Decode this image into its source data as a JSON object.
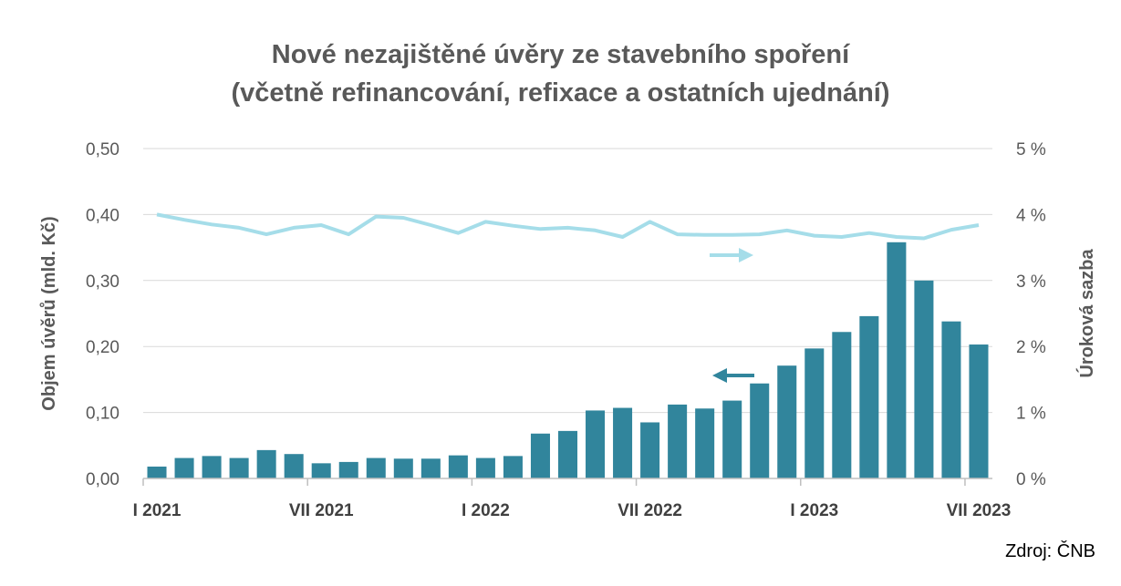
{
  "chart_data": {
    "type": "bar",
    "title": "Nové nezajištěné úvěry ze stavebního spoření",
    "subtitle": "(včetně refinancování, refixace a ostatních ujednání)",
    "ylabel": "Objem úvěrů (mld. Kč)",
    "y2label": "Úroková sazba",
    "ylim": [
      0,
      0.5
    ],
    "y2lim": [
      0,
      5
    ],
    "yticks": [
      "0,00",
      "0,10",
      "0,20",
      "0,30",
      "0,40",
      "0,50"
    ],
    "y2ticks": [
      "0 %",
      "1 %",
      "2 %",
      "3 %",
      "4 %",
      "5 %"
    ],
    "xtick_labels": [
      {
        "index": 0,
        "label": "I 2021"
      },
      {
        "index": 6,
        "label": "VII 2021"
      },
      {
        "index": 12,
        "label": "I 2022"
      },
      {
        "index": 18,
        "label": "VII 2022"
      },
      {
        "index": 24,
        "label": "I 2023"
      },
      {
        "index": 30,
        "label": "VII 2023"
      }
    ],
    "grid": true,
    "series": [
      {
        "type": "bar",
        "axis": "left",
        "color": "#31859c",
        "values": [
          0.018,
          0.031,
          0.034,
          0.031,
          0.043,
          0.037,
          0.023,
          0.025,
          0.031,
          0.03,
          0.03,
          0.035,
          0.031,
          0.034,
          0.068,
          0.072,
          0.103,
          0.107,
          0.085,
          0.112,
          0.106,
          0.118,
          0.144,
          0.171,
          0.197,
          0.222,
          0.246,
          0.358,
          0.3,
          0.238,
          0.203
        ]
      },
      {
        "type": "line",
        "axis": "right",
        "color": "#a5dde9",
        "values": [
          4.0,
          3.92,
          3.85,
          3.8,
          3.7,
          3.8,
          3.84,
          3.7,
          3.97,
          3.95,
          3.84,
          3.72,
          3.89,
          3.83,
          3.78,
          3.8,
          3.76,
          3.66,
          3.89,
          3.7,
          3.69,
          3.69,
          3.7,
          3.76,
          3.68,
          3.66,
          3.72,
          3.66,
          3.64,
          3.77,
          3.84
        ]
      }
    ]
  },
  "source": "Zdroj: ČNB"
}
